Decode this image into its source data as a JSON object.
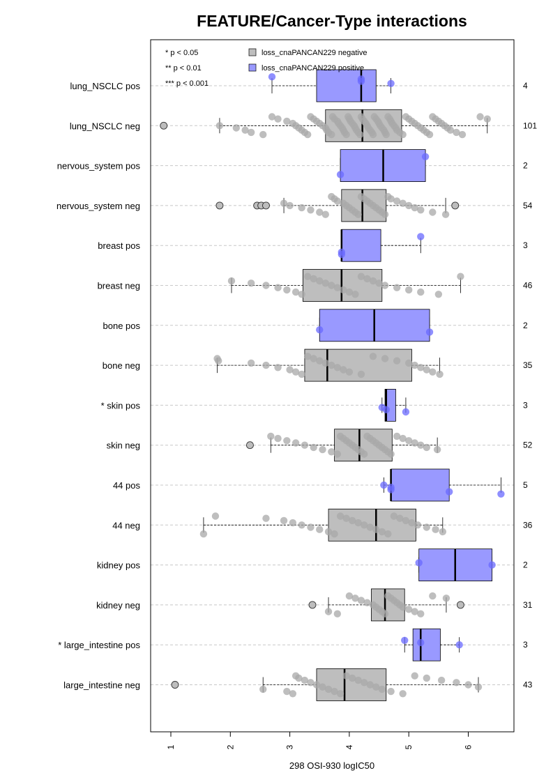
{
  "chart_data": {
    "type": "boxplot",
    "orientation": "horizontal",
    "title": "FEATURE/Cancer-Type interactions",
    "xlabel": "298 OSI-930 logIC50",
    "xlim": [
      0.6,
      6.8
    ],
    "xticks": [
      1,
      2,
      3,
      4,
      5,
      6
    ],
    "grid": "horizontal dashed",
    "legend": {
      "placement": "top-left",
      "significance": [
        "* p < 0.05",
        "** p < 0.01",
        "*** p < 0.001"
      ],
      "groups": [
        {
          "label": "loss_cnaPANCAN229 negative",
          "color": "#bebebe"
        },
        {
          "label": "loss_cnaPANCAN229 positive",
          "color": "#9999ff"
        }
      ]
    },
    "colors": {
      "negative": "#bebebe",
      "positive": "#9999ff",
      "negative_point": "#a8a8a8",
      "positive_point": "#6a6aff"
    },
    "rows": [
      {
        "label": "lung_NSCLC pos",
        "n": "4",
        "group": "positive",
        "box": [
          2.7,
          3.45,
          4.2,
          4.45,
          4.7
        ],
        "outliers": [],
        "points": [
          2.7,
          4.2,
          4.2,
          4.7
        ]
      },
      {
        "label": "lung_NSCLC neg",
        "n": "101",
        "group": "negative",
        "box": [
          1.82,
          3.6,
          4.22,
          4.88,
          6.32
        ],
        "outliers": [
          0.88
        ],
        "points": [
          1.82,
          2.1,
          2.25,
          2.35,
          2.55,
          2.7,
          2.8,
          2.95,
          3.05,
          3.1,
          3.15,
          3.2,
          3.25,
          3.3,
          3.35,
          3.4,
          3.45,
          3.5,
          3.55,
          3.6,
          3.62,
          3.65,
          3.7,
          3.72,
          3.75,
          3.8,
          3.82,
          3.85,
          3.88,
          3.9,
          3.92,
          3.95,
          3.98,
          4.0,
          4.02,
          4.05,
          4.08,
          4.1,
          4.12,
          4.15,
          4.18,
          4.2,
          4.22,
          4.25,
          4.28,
          4.3,
          4.32,
          4.35,
          4.38,
          4.4,
          4.42,
          4.45,
          4.48,
          4.5,
          4.52,
          4.55,
          4.58,
          4.6,
          4.62,
          4.65,
          4.68,
          4.7,
          4.72,
          4.75,
          4.78,
          4.8,
          4.85,
          4.9,
          4.95,
          5.0,
          5.05,
          5.1,
          5.15,
          5.2,
          5.25,
          5.3,
          5.35,
          5.4,
          5.45,
          5.5,
          5.55,
          5.6,
          5.65,
          5.7,
          5.8,
          5.9,
          6.2,
          6.32
        ]
      },
      {
        "label": "nervous_system pos",
        "n": "2",
        "group": "positive",
        "box": [
          3.85,
          3.85,
          4.57,
          5.28,
          5.28
        ],
        "outliers": [],
        "points": [
          3.85,
          5.28
        ]
      },
      {
        "label": "nervous_system neg",
        "n": "54",
        "group": "negative",
        "box": [
          2.9,
          3.87,
          4.22,
          4.62,
          5.62
        ],
        "outliers": [
          1.82,
          2.45,
          2.52,
          2.6,
          5.78
        ],
        "points": [
          2.9,
          3.0,
          3.2,
          3.35,
          3.5,
          3.6,
          3.7,
          3.75,
          3.8,
          3.9,
          3.95,
          4.0,
          4.05,
          4.1,
          4.15,
          4.2,
          4.25,
          4.3,
          4.35,
          4.4,
          4.45,
          4.5,
          4.55,
          4.6,
          4.65,
          4.7,
          4.8,
          4.9,
          5.0,
          5.1,
          5.2,
          5.4,
          5.62
        ]
      },
      {
        "label": "breast pos",
        "n": "3",
        "group": "positive",
        "box": [
          3.87,
          3.87,
          3.87,
          4.53,
          5.2
        ],
        "outliers": [],
        "points": [
          3.87,
          3.87,
          5.2
        ]
      },
      {
        "label": "breast neg",
        "n": "46",
        "group": "negative",
        "box": [
          2.02,
          3.22,
          3.87,
          4.55,
          5.87
        ],
        "outliers": [],
        "points": [
          2.02,
          2.35,
          2.6,
          2.8,
          2.95,
          3.1,
          3.2,
          3.3,
          3.4,
          3.5,
          3.6,
          3.7,
          3.8,
          3.9,
          4.0,
          4.1,
          4.2,
          4.3,
          4.4,
          4.5,
          4.6,
          4.8,
          5.0,
          5.2,
          5.5,
          5.87
        ]
      },
      {
        "label": "bone pos",
        "n": "2",
        "group": "positive",
        "box": [
          3.5,
          3.5,
          4.42,
          5.35,
          5.35
        ],
        "outliers": [],
        "points": [
          3.5,
          5.35
        ]
      },
      {
        "label": "bone neg",
        "n": "35",
        "group": "negative",
        "box": [
          1.78,
          3.25,
          3.63,
          5.05,
          5.52
        ],
        "outliers": [],
        "points": [
          1.78,
          1.8,
          2.35,
          2.6,
          2.8,
          3.0,
          3.1,
          3.2,
          3.3,
          3.4,
          3.5,
          3.6,
          3.7,
          3.8,
          3.9,
          4.0,
          4.2,
          4.4,
          4.6,
          4.8,
          5.0,
          5.1,
          5.2,
          5.3,
          5.4,
          5.52
        ]
      },
      {
        "label": "* skin pos",
        "n": "3",
        "group": "positive",
        "box": [
          4.55,
          4.6,
          4.62,
          4.78,
          4.95
        ],
        "outliers": [],
        "points": [
          4.55,
          4.62,
          4.95
        ]
      },
      {
        "label": "skin neg",
        "n": "52",
        "group": "negative",
        "box": [
          2.68,
          3.75,
          4.17,
          4.72,
          5.48
        ],
        "outliers": [
          2.33
        ],
        "points": [
          2.68,
          2.8,
          2.95,
          3.1,
          3.25,
          3.4,
          3.55,
          3.7,
          3.8,
          3.85,
          3.9,
          3.95,
          4.0,
          4.05,
          4.1,
          4.15,
          4.2,
          4.25,
          4.3,
          4.35,
          4.4,
          4.45,
          4.5,
          4.55,
          4.6,
          4.65,
          4.7,
          4.8,
          4.9,
          5.0,
          5.1,
          5.2,
          5.3,
          5.48
        ]
      },
      {
        "label": "44 pos",
        "n": "5",
        "group": "positive",
        "box": [
          4.58,
          4.7,
          4.7,
          5.68,
          6.55
        ],
        "outliers": [],
        "points": [
          4.58,
          4.7,
          4.7,
          5.68,
          6.55
        ]
      },
      {
        "label": "44 neg",
        "n": "36",
        "group": "negative",
        "box": [
          1.55,
          3.65,
          4.45,
          5.12,
          5.57
        ],
        "outliers": [],
        "points": [
          1.55,
          1.75,
          2.6,
          2.9,
          3.05,
          3.2,
          3.35,
          3.5,
          3.65,
          3.75,
          3.85,
          3.95,
          4.05,
          4.15,
          4.25,
          4.35,
          4.45,
          4.55,
          4.65,
          4.75,
          4.85,
          4.95,
          5.05,
          5.15,
          5.3,
          5.45,
          5.57
        ]
      },
      {
        "label": "kidney pos",
        "n": "2",
        "group": "positive",
        "box": [
          5.17,
          5.17,
          5.78,
          6.4,
          6.4
        ],
        "outliers": [],
        "points": [
          5.17,
          6.4
        ]
      },
      {
        "label": "kidney neg",
        "n": "31",
        "group": "negative",
        "box": [
          3.65,
          4.37,
          4.6,
          4.93,
          5.63
        ],
        "outliers": [
          3.38,
          5.87
        ],
        "points": [
          3.65,
          3.8,
          4.0,
          4.1,
          4.2,
          4.3,
          4.4,
          4.45,
          4.5,
          4.55,
          4.6,
          4.65,
          4.7,
          4.75,
          4.8,
          4.85,
          4.9,
          5.0,
          5.1,
          5.2,
          5.4,
          5.63
        ]
      },
      {
        "label": "* large_intestine pos",
        "n": "3",
        "group": "positive",
        "box": [
          4.93,
          5.07,
          5.2,
          5.53,
          5.85
        ],
        "outliers": [],
        "points": [
          4.93,
          5.2,
          5.85
        ]
      },
      {
        "label": "large_intestine neg",
        "n": "43",
        "group": "negative",
        "box": [
          2.55,
          3.45,
          3.92,
          4.62,
          6.17
        ],
        "outliers": [
          1.07
        ],
        "points": [
          2.55,
          2.95,
          3.05,
          3.1,
          3.15,
          3.25,
          3.35,
          3.45,
          3.55,
          3.65,
          3.75,
          3.85,
          3.95,
          4.05,
          4.15,
          4.25,
          4.35,
          4.45,
          4.55,
          4.7,
          4.9,
          5.1,
          5.3,
          5.55,
          5.8,
          6.0,
          6.17
        ]
      }
    ]
  }
}
